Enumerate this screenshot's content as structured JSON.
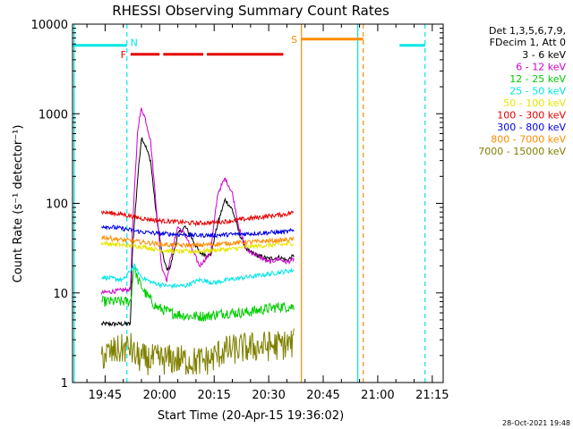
{
  "chart_data": {
    "type": "line",
    "title": "RHESSI Observing Summary Count Rates",
    "xlabel": "Start Time (20-Apr-15 19:36:02)",
    "ylabel": "Count Rate (s⁻¹ detector⁻¹)",
    "yscale": "log",
    "xlim": [
      "19:36:02",
      "21:18:00"
    ],
    "ylim": [
      1,
      10000
    ],
    "grid": false,
    "legend_position": "top-right, outside plot",
    "legend_header": [
      "Det 1,3,5,6,7,9,",
      "FDecim 1, Att 0"
    ],
    "x_tick_labels": [
      "19:45",
      "20:00",
      "20:15",
      "20:30",
      "20:45",
      "21:00",
      "21:15"
    ],
    "y_tick_labels": [
      "1",
      "10",
      "100",
      "1000",
      "10000"
    ],
    "timestamp": "28-Oct-2021 19:48",
    "series": [
      {
        "name": "3 - 6 keV",
        "color": "#000000",
        "points": [
          [
            "19:44:00",
            4.5
          ],
          [
            "19:52:00",
            4.5
          ],
          [
            "19:52:30",
            30
          ],
          [
            "19:54:00",
            200
          ],
          [
            "19:55:00",
            550
          ],
          [
            "19:56:00",
            450
          ],
          [
            "19:57:30",
            300
          ],
          [
            "19:59:00",
            80
          ],
          [
            "20:00:30",
            30
          ],
          [
            "20:02:00",
            18
          ],
          [
            "20:03:00",
            20
          ],
          [
            "20:05:00",
            45
          ],
          [
            "20:07:00",
            55
          ],
          [
            "20:09:00",
            40
          ],
          [
            "20:11:00",
            28
          ],
          [
            "20:14:00",
            26
          ],
          [
            "20:16:00",
            60
          ],
          [
            "20:18:00",
            110
          ],
          [
            "20:20:00",
            85
          ],
          [
            "20:22:00",
            45
          ],
          [
            "20:24:00",
            30
          ],
          [
            "20:27:00",
            26
          ],
          [
            "20:30:00",
            24
          ],
          [
            "20:33:00",
            25
          ],
          [
            "20:35:00",
            23
          ],
          [
            "20:37:00",
            26
          ]
        ]
      },
      {
        "name": "6 - 12 keV",
        "color": "#cc00cc",
        "points": [
          [
            "19:44:00",
            10
          ],
          [
            "19:52:00",
            11
          ],
          [
            "19:52:30",
            50
          ],
          [
            "19:54:00",
            700
          ],
          [
            "19:55:00",
            1150
          ],
          [
            "19:56:00",
            900
          ],
          [
            "19:57:30",
            500
          ],
          [
            "19:59:00",
            100
          ],
          [
            "20:00:30",
            20
          ],
          [
            "20:02:00",
            14
          ],
          [
            "20:03:00",
            25
          ],
          [
            "20:05:00",
            55
          ],
          [
            "20:07:00",
            45
          ],
          [
            "20:09:00",
            30
          ],
          [
            "20:11:00",
            20
          ],
          [
            "20:14:00",
            28
          ],
          [
            "20:16:00",
            130
          ],
          [
            "20:18:00",
            190
          ],
          [
            "20:20:00",
            130
          ],
          [
            "20:22:00",
            50
          ],
          [
            "20:24:00",
            30
          ],
          [
            "20:27:00",
            26
          ],
          [
            "20:30:00",
            22
          ],
          [
            "20:33:00",
            24
          ],
          [
            "20:35:00",
            22
          ],
          [
            "20:37:00",
            24
          ]
        ]
      },
      {
        "name": "12 - 25 keV",
        "color": "#00cc00",
        "points": [
          [
            "19:44:00",
            8
          ],
          [
            "19:52:00",
            8
          ],
          [
            "19:53:00",
            20
          ],
          [
            "19:54:00",
            14
          ],
          [
            "19:56:00",
            10
          ],
          [
            "19:59:00",
            7
          ],
          [
            "20:03:00",
            6
          ],
          [
            "20:08:00",
            5.5
          ],
          [
            "20:13:00",
            5.5
          ],
          [
            "20:18:00",
            6
          ],
          [
            "20:23:00",
            6
          ],
          [
            "20:28:00",
            6.5
          ],
          [
            "20:33:00",
            7
          ],
          [
            "20:37:00",
            7
          ]
        ]
      },
      {
        "name": "25 - 50 keV",
        "color": "#00e6e6",
        "points": [
          [
            "19:44:00",
            15
          ],
          [
            "19:50:00",
            14
          ],
          [
            "19:53:00",
            20
          ],
          [
            "19:55:00",
            15
          ],
          [
            "19:58:00",
            13
          ],
          [
            "20:02:00",
            12
          ],
          [
            "20:07:00",
            12
          ],
          [
            "20:11:00",
            14
          ],
          [
            "20:15:00",
            13
          ],
          [
            "20:19:00",
            14
          ],
          [
            "20:24:00",
            15
          ],
          [
            "20:29:00",
            16
          ],
          [
            "20:33:00",
            17
          ],
          [
            "20:37:00",
            18
          ]
        ]
      },
      {
        "name": "50 - 100 keV",
        "color": "#e6e600",
        "points": [
          [
            "19:44:00",
            36
          ],
          [
            "19:50:00",
            34
          ],
          [
            "19:55:00",
            33
          ],
          [
            "20:00:00",
            30
          ],
          [
            "20:05:00",
            29
          ],
          [
            "20:10:00",
            29
          ],
          [
            "20:15:00",
            30
          ],
          [
            "20:20:00",
            31
          ],
          [
            "20:25:00",
            33
          ],
          [
            "20:30:00",
            34
          ],
          [
            "20:35:00",
            35
          ],
          [
            "20:37:00",
            36
          ]
        ]
      },
      {
        "name": "100 - 300 keV",
        "color": "#e60000",
        "points": [
          [
            "19:44:00",
            80
          ],
          [
            "19:50:00",
            75
          ],
          [
            "19:55:00",
            68
          ],
          [
            "20:00:00",
            64
          ],
          [
            "20:05:00",
            62
          ],
          [
            "20:10:00",
            60
          ],
          [
            "20:15:00",
            61
          ],
          [
            "20:20:00",
            64
          ],
          [
            "20:25:00",
            68
          ],
          [
            "20:30:00",
            72
          ],
          [
            "20:35:00",
            76
          ],
          [
            "20:37:00",
            80
          ]
        ]
      },
      {
        "name": "300 - 800 keV",
        "color": "#0000e6",
        "points": [
          [
            "19:44:00",
            56
          ],
          [
            "19:50:00",
            52
          ],
          [
            "19:55:00",
            48
          ],
          [
            "20:00:00",
            46
          ],
          [
            "20:05:00",
            45
          ],
          [
            "20:10:00",
            44
          ],
          [
            "20:15:00",
            44
          ],
          [
            "20:20:00",
            45
          ],
          [
            "20:25:00",
            46
          ],
          [
            "20:30:00",
            47
          ],
          [
            "20:35:00",
            48
          ],
          [
            "20:37:00",
            50
          ]
        ]
      },
      {
        "name": "800 - 7000 keV",
        "color": "#ff8c00",
        "points": [
          [
            "19:44:00",
            42
          ],
          [
            "19:50:00",
            39
          ],
          [
            "19:55:00",
            37
          ],
          [
            "20:00:00",
            35
          ],
          [
            "20:05:00",
            34
          ],
          [
            "20:10:00",
            34
          ],
          [
            "20:15:00",
            35
          ],
          [
            "20:20:00",
            36
          ],
          [
            "20:25:00",
            37
          ],
          [
            "20:30:00",
            38
          ],
          [
            "20:35:00",
            39
          ],
          [
            "20:37:00",
            40
          ]
        ]
      },
      {
        "name": "7000 - 15000 keV",
        "color": "#808000",
        "points": [
          [
            "19:44:00",
            2
          ],
          [
            "19:52:00",
            2.5
          ],
          [
            "19:53:00",
            2
          ],
          [
            "19:56:00",
            1.8
          ],
          [
            "20:00:00",
            1.8
          ],
          [
            "20:05:00",
            1.8
          ],
          [
            "20:10:00",
            1.7
          ],
          [
            "20:14:00",
            1.8
          ],
          [
            "20:17:00",
            2.2
          ],
          [
            "20:22:00",
            2.4
          ],
          [
            "20:27:00",
            2.5
          ],
          [
            "20:32:00",
            2.6
          ],
          [
            "20:37:00",
            2.7
          ]
        ]
      }
    ],
    "status_bars": [
      {
        "label": "N",
        "name": "night-bar-1",
        "color": "#00e6e6",
        "start": "19:36:02",
        "end": "19:51:00",
        "y": 5800
      },
      {
        "label": "",
        "name": "night-bar-2",
        "color": "#00e6e6",
        "start": "21:06:00",
        "end": "21:13:00",
        "y": 5800
      },
      {
        "label": "S",
        "name": "saa-bar",
        "color": "#ff8c00",
        "start": "20:39:00",
        "end": "20:56:00",
        "y": 6800
      },
      {
        "label": "F",
        "name": "flare-bar",
        "color": "#e60000",
        "segments": [
          [
            "19:52:00",
            "20:00:00"
          ],
          [
            "20:01:00",
            "20:12:00"
          ],
          [
            "20:13:00",
            "20:34:00"
          ]
        ],
        "y": 4600
      }
    ],
    "vertical_markers": [
      {
        "name": "night-start-line",
        "time": "19:36:30",
        "color": "#00e6e6",
        "style": "solid"
      },
      {
        "name": "night-end-line",
        "time": "19:51:00",
        "color": "#00e6e6",
        "style": "dashed"
      },
      {
        "name": "saa-start-line",
        "time": "20:39:00",
        "color": "#ff8c00",
        "style": "solid"
      },
      {
        "name": "night2-start-line",
        "time": "20:54:30",
        "color": "#00e6e6",
        "style": "solid"
      },
      {
        "name": "saa-end-line",
        "time": "20:56:00",
        "color": "#ff8c00",
        "style": "dashed"
      },
      {
        "name": "night2-end-line",
        "time": "21:13:00",
        "color": "#00e6e6",
        "style": "dashed"
      }
    ]
  }
}
